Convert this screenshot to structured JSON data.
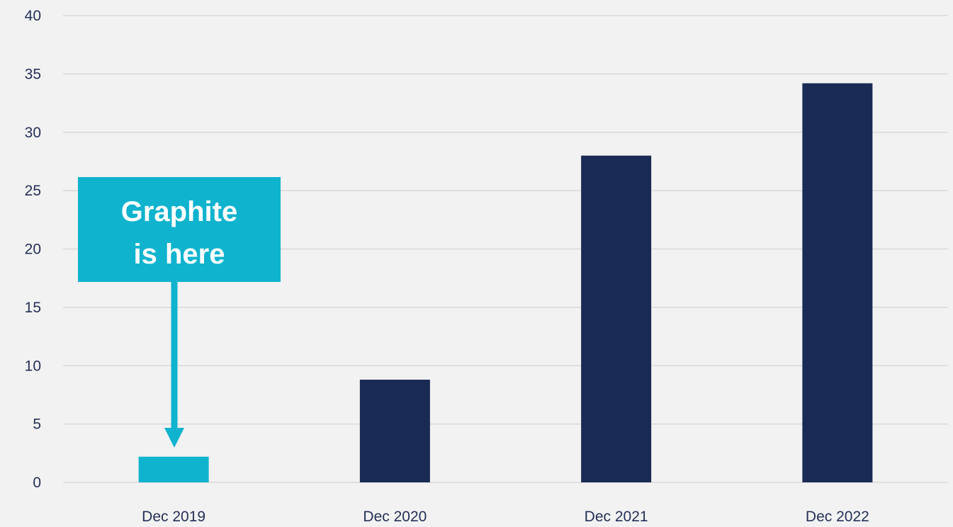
{
  "chart_data": {
    "type": "bar",
    "categories": [
      "Dec 2019",
      "Dec 2020",
      "Dec 2021",
      "Dec 2022"
    ],
    "values": [
      2.2,
      8.8,
      28.0,
      34.2
    ],
    "ylim": [
      0,
      40
    ],
    "yticks": [
      0,
      5,
      10,
      15,
      20,
      25,
      30,
      35,
      40
    ],
    "grid": true,
    "colors": {
      "bar": "#192a54",
      "highlight": "#0fb3ce",
      "grid": "#d9d9d9",
      "background": "#f2f2f2"
    },
    "highlight_index": 0,
    "annotation": {
      "line1": "Graphite",
      "line2": "is here",
      "target": "Dec 2019"
    }
  }
}
